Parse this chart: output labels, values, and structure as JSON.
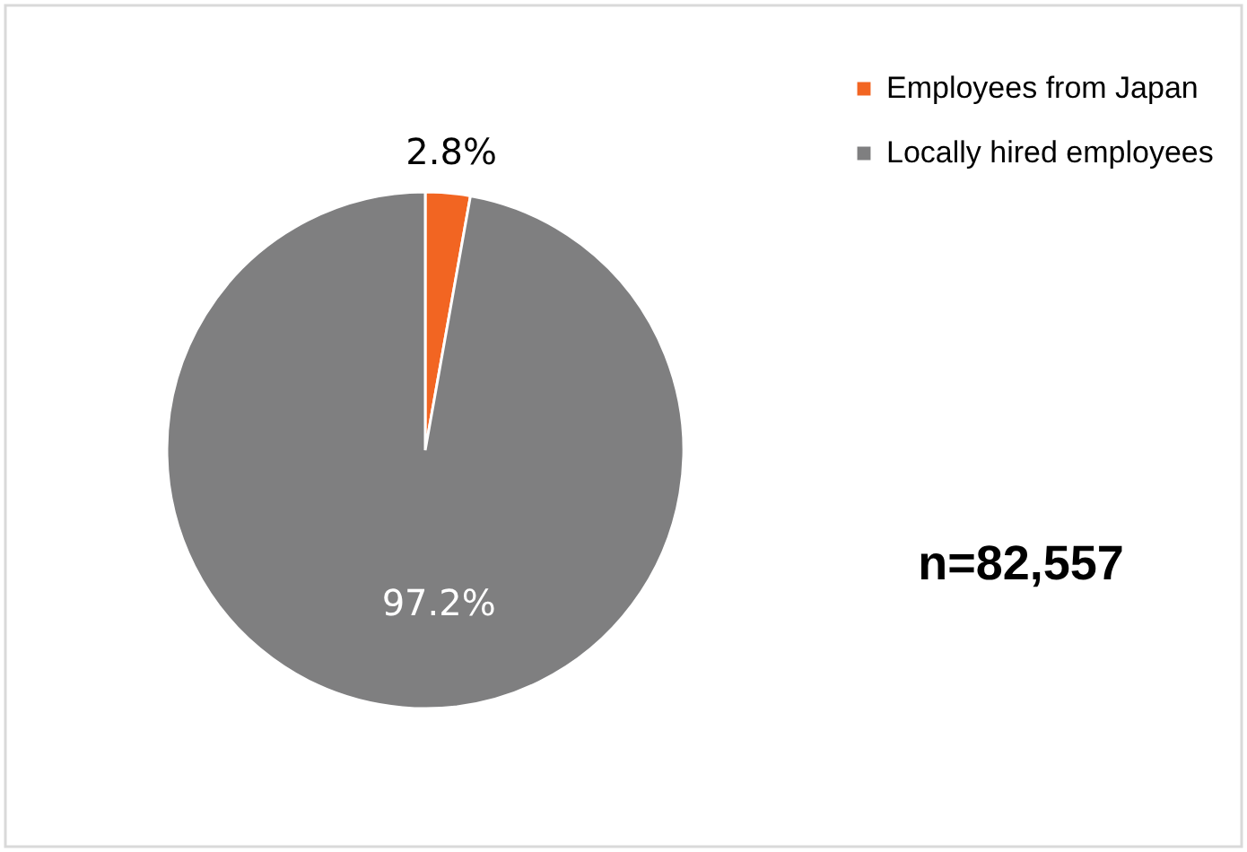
{
  "chart_data": {
    "type": "pie",
    "categories": [
      "Employees from Japan",
      "Locally hired employees"
    ],
    "values": [
      2.8,
      97.2
    ],
    "colors": [
      "#f26522",
      "#7f7f80"
    ],
    "value_labels": [
      "2.8%",
      "97.2%"
    ],
    "legend": "top right",
    "annotations": [
      "n=82,557"
    ]
  }
}
